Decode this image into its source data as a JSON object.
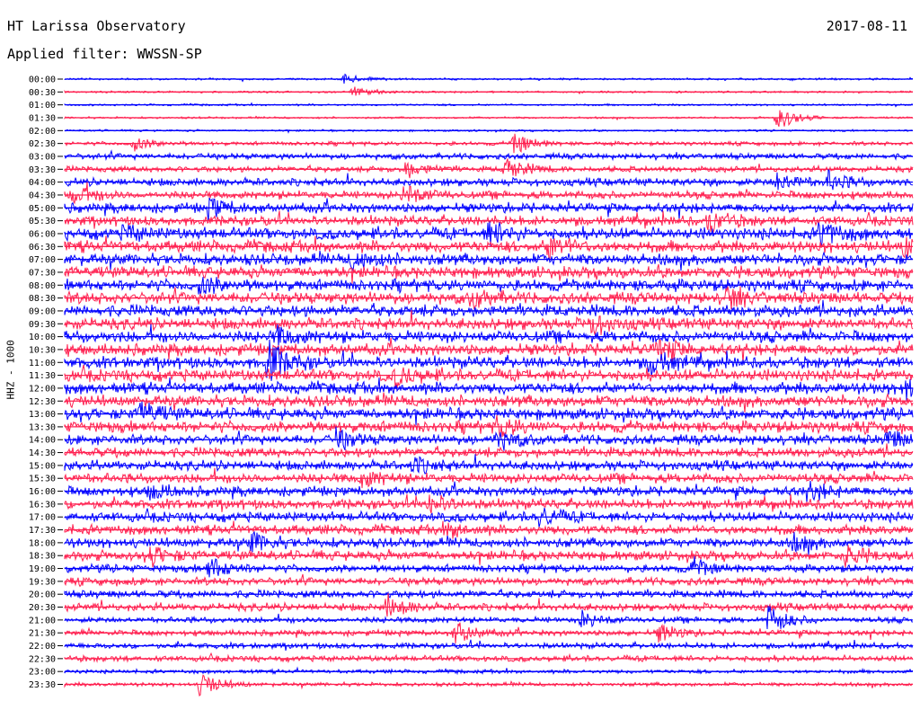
{
  "header": {
    "title": "HT Larissa Observatory",
    "date": "2017-08-11",
    "filter": "Applied filter: WWSSN-SP"
  },
  "chart_data": {
    "type": "line",
    "title": "HT Larissa Observatory",
    "ylabel": "HHZ - 1000",
    "categories": [
      "00:00",
      "00:30",
      "01:00",
      "01:30",
      "02:00",
      "02:30",
      "03:00",
      "03:30",
      "04:00",
      "04:30",
      "05:00",
      "05:30",
      "06:00",
      "06:30",
      "07:00",
      "07:30",
      "08:00",
      "08:30",
      "09:00",
      "09:30",
      "10:00",
      "10:30",
      "11:00",
      "11:30",
      "12:00",
      "12:30",
      "13:00",
      "13:30",
      "14:00",
      "14:30",
      "15:00",
      "15:30",
      "16:00",
      "16:30",
      "17:00",
      "17:30",
      "18:00",
      "18:30",
      "19:00",
      "19:30",
      "20:00",
      "20:30",
      "21:00",
      "21:30",
      "22:00",
      "22:30",
      "23:00",
      "23:30"
    ],
    "colors": {
      "even": "#0000ff",
      "odd": "#ff2050"
    },
    "noise_level": [
      1,
      1,
      1,
      1,
      1,
      2,
      3,
      3,
      4,
      4,
      5,
      5,
      6,
      6,
      6,
      6,
      6,
      6,
      6,
      6,
      6,
      6,
      6,
      6,
      6,
      6,
      6,
      6,
      5,
      5,
      5,
      5,
      5,
      5,
      5,
      5,
      5,
      5,
      4,
      4,
      4,
      4,
      3,
      3,
      3,
      3,
      2,
      2
    ],
    "events": [
      {
        "trace": 0,
        "x": 0.33,
        "a": 5
      },
      {
        "trace": 1,
        "x": 0.34,
        "a": 6
      },
      {
        "trace": 3,
        "x": 0.84,
        "a": 14
      },
      {
        "trace": 5,
        "x": 0.08,
        "a": 8
      },
      {
        "trace": 5,
        "x": 0.53,
        "a": 12
      },
      {
        "trace": 7,
        "x": 0.4,
        "a": 10
      },
      {
        "trace": 7,
        "x": 0.52,
        "a": 12
      },
      {
        "trace": 8,
        "x": 0.84,
        "a": 10
      },
      {
        "trace": 8,
        "x": 0.9,
        "a": 10
      },
      {
        "trace": 9,
        "x": 0.01,
        "a": 12
      },
      {
        "trace": 9,
        "x": 0.4,
        "a": 12
      },
      {
        "trace": 10,
        "x": 0.17,
        "a": 10
      },
      {
        "trace": 11,
        "x": 0.76,
        "a": 12
      },
      {
        "trace": 12,
        "x": 0.07,
        "a": 8
      },
      {
        "trace": 12,
        "x": 0.5,
        "a": 12
      },
      {
        "trace": 12,
        "x": 0.89,
        "a": 14
      },
      {
        "trace": 13,
        "x": 0.57,
        "a": 12
      },
      {
        "trace": 13,
        "x": 0.99,
        "a": 10
      },
      {
        "trace": 14,
        "x": 0.34,
        "a": 10
      },
      {
        "trace": 16,
        "x": 0.16,
        "a": 9
      },
      {
        "trace": 17,
        "x": 0.48,
        "a": 10
      },
      {
        "trace": 17,
        "x": 0.78,
        "a": 10
      },
      {
        "trace": 19,
        "x": 0.62,
        "a": 10
      },
      {
        "trace": 20,
        "x": 0.25,
        "a": 10
      },
      {
        "trace": 21,
        "x": 0.7,
        "a": 12
      },
      {
        "trace": 22,
        "x": 0.24,
        "a": 22
      },
      {
        "trace": 22,
        "x": 0.69,
        "a": 12
      },
      {
        "trace": 23,
        "x": 0.39,
        "a": 10
      },
      {
        "trace": 24,
        "x": 0.99,
        "a": 12
      },
      {
        "trace": 26,
        "x": 0.09,
        "a": 12
      },
      {
        "trace": 27,
        "x": 0.51,
        "a": 10
      },
      {
        "trace": 28,
        "x": 0.32,
        "a": 10
      },
      {
        "trace": 28,
        "x": 0.51,
        "a": 10
      },
      {
        "trace": 28,
        "x": 0.97,
        "a": 10
      },
      {
        "trace": 30,
        "x": 0.41,
        "a": 8
      },
      {
        "trace": 31,
        "x": 0.35,
        "a": 8
      },
      {
        "trace": 32,
        "x": 0.1,
        "a": 8
      },
      {
        "trace": 32,
        "x": 0.88,
        "a": 8
      },
      {
        "trace": 33,
        "x": 0.43,
        "a": 10
      },
      {
        "trace": 34,
        "x": 0.56,
        "a": 10
      },
      {
        "trace": 35,
        "x": 0.45,
        "a": 8
      },
      {
        "trace": 36,
        "x": 0.22,
        "a": 10
      },
      {
        "trace": 36,
        "x": 0.86,
        "a": 8
      },
      {
        "trace": 37,
        "x": 0.1,
        "a": 10
      },
      {
        "trace": 37,
        "x": 0.92,
        "a": 10
      },
      {
        "trace": 38,
        "x": 0.17,
        "a": 12
      },
      {
        "trace": 38,
        "x": 0.74,
        "a": 10
      },
      {
        "trace": 41,
        "x": 0.38,
        "a": 12
      },
      {
        "trace": 42,
        "x": 0.83,
        "a": 16
      },
      {
        "trace": 42,
        "x": 0.61,
        "a": 9
      },
      {
        "trace": 43,
        "x": 0.46,
        "a": 12
      },
      {
        "trace": 43,
        "x": 0.7,
        "a": 10
      },
      {
        "trace": 47,
        "x": 0.16,
        "a": 14
      }
    ]
  }
}
